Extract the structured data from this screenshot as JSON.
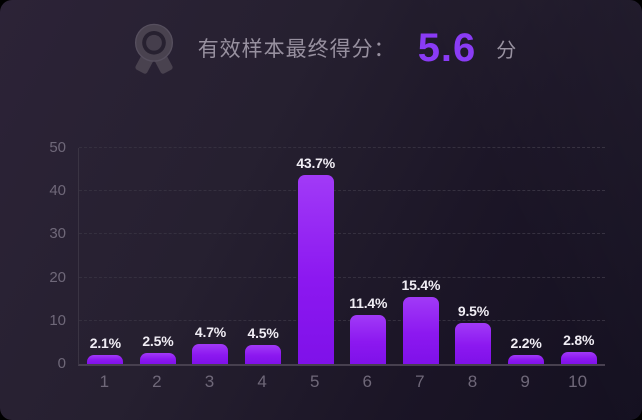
{
  "header": {
    "icon": "medal-icon",
    "title": "有效样本最终得分：",
    "score": "5.6",
    "unit": "分",
    "accent_color": "#8a3bf5"
  },
  "chart_data": {
    "type": "bar",
    "title": "有效样本最终得分：5.6 分",
    "categories": [
      "1",
      "2",
      "3",
      "4",
      "5",
      "6",
      "7",
      "8",
      "9",
      "10"
    ],
    "values": [
      2.1,
      2.5,
      4.7,
      4.5,
      43.7,
      11.4,
      15.4,
      9.5,
      2.2,
      2.8
    ],
    "labels": [
      "2.1%",
      "2.5%",
      "4.7%",
      "4.5%",
      "43.7%",
      "11.4%",
      "15.4%",
      "9.5%",
      "2.2%",
      "2.8%"
    ],
    "xlabel": "",
    "ylabel": "",
    "yticks": [
      0,
      10,
      20,
      30,
      40,
      50
    ],
    "ylim": [
      0,
      50
    ],
    "grid": "dashed horizontal",
    "legend": "none",
    "bar_color_top": "#a13af7",
    "bar_color_bottom": "#7f11e9",
    "background_color": "#211a2c",
    "tick_color": "#6f6879",
    "label_color": "#f0edf4"
  }
}
